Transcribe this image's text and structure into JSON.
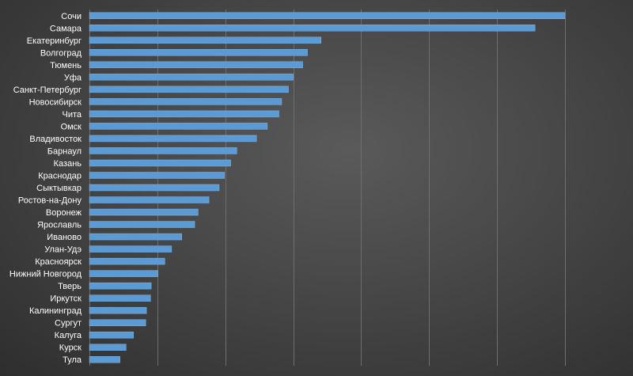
{
  "chart_data": {
    "type": "bar",
    "orientation": "horizontal",
    "categories": [
      "Сочи",
      "Самара",
      "Екатеринбург",
      "Волгоград",
      "Тюмень",
      "Уфа",
      "Санкт-Петербург",
      "Новосибирск",
      "Чита",
      "Омск",
      "Владивосток",
      "Барнаул",
      "Казань",
      "Краснодар",
      "Сыктывкар",
      "Ростов-на-Дону",
      "Воронеж",
      "Ярославль",
      "Иваново",
      "Улан-Удэ",
      "Красноярск",
      "Нижний Новгород",
      "Тверь",
      "Иркутск",
      "Калининград",
      "Сургут",
      "Калуга",
      "Курск",
      "Тула"
    ],
    "values": [
      7.0,
      6.56,
      3.41,
      3.21,
      3.14,
      3.0,
      2.93,
      2.83,
      2.79,
      2.62,
      2.46,
      2.17,
      2.08,
      1.99,
      1.91,
      1.76,
      1.6,
      1.55,
      1.36,
      1.21,
      1.11,
      1.01,
      0.91,
      0.9,
      0.84,
      0.83,
      0.65,
      0.54,
      0.45
    ],
    "xlim": [
      0,
      7
    ],
    "grid": true,
    "bar_color": "#5b9bd5",
    "title": "",
    "xlabel": "",
    "ylabel": ""
  }
}
